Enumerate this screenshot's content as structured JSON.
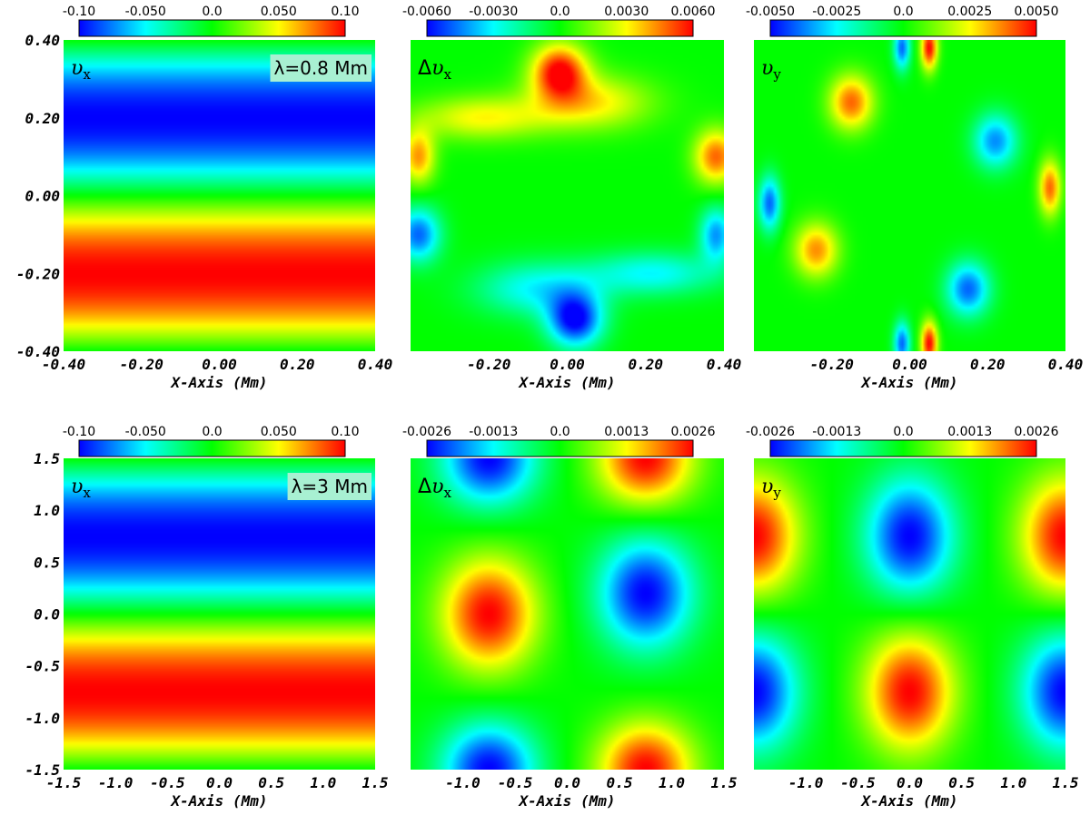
{
  "colors": {
    "colormap": [
      "#0000ff",
      "#00ffff",
      "#00ff00",
      "#ffff00",
      "#ff0000"
    ],
    "label_bg": "#a8f0d2"
  },
  "chart_data": [
    {
      "type": "heatmap",
      "panel": "top-left",
      "var_label": "υ",
      "var_sub": "x",
      "prefix": "",
      "annotation": "λ=0.8 Mm",
      "xlabel": "X-Axis (Mm)",
      "x_ticks": [
        "-0.40",
        "-0.20",
        "0.00",
        "0.20",
        "0.40"
      ],
      "y_ticks": [
        "0.40",
        "0.20",
        "0.00",
        "-0.20",
        "-0.40"
      ],
      "colorbar_ticks": [
        "-0.10",
        "-0.050",
        "0.0",
        "0.050",
        "0.10"
      ],
      "vmin": -0.1,
      "vmax": 0.1,
      "xlim": [
        -0.4,
        0.4
      ],
      "ylim": [
        -0.4,
        0.4
      ],
      "field": {
        "kind": "band",
        "A": 0.1,
        "period": 0.8,
        "center": -0.2
      }
    },
    {
      "type": "heatmap",
      "panel": "top-middle",
      "var_label": "υ",
      "var_sub": "x",
      "prefix": "Δ",
      "annotation": "",
      "xlabel": "X-Axis (Mm)",
      "x_ticks": [
        "-0.20",
        "0.00",
        "0.20",
        "0.40"
      ],
      "y_ticks": [],
      "colorbar_ticks": [
        "-0.0060",
        "-0.0030",
        "0.0",
        "0.0030",
        "0.0060"
      ],
      "vmin": -0.006,
      "vmax": 0.006,
      "xlim": [
        -0.4,
        0.4
      ],
      "ylim": [
        -0.4,
        0.4
      ],
      "field": {
        "kind": "blobs",
        "blobs": [
          {
            "x": -0.02,
            "y": 0.32,
            "a": 0.006,
            "sx": 0.05,
            "sy": 0.05
          },
          {
            "x": 0.06,
            "y": 0.24,
            "a": 0.0032,
            "sx": 0.11,
            "sy": 0.05
          },
          {
            "x": -0.22,
            "y": 0.2,
            "a": 0.003,
            "sx": 0.12,
            "sy": 0.04
          },
          {
            "x": -0.38,
            "y": 0.1,
            "a": 0.0042,
            "sx": 0.03,
            "sy": 0.05
          },
          {
            "x": 0.38,
            "y": 0.1,
            "a": 0.0048,
            "sx": 0.04,
            "sy": 0.05
          },
          {
            "x": 0.02,
            "y": -0.32,
            "a": -0.006,
            "sx": 0.05,
            "sy": 0.05
          },
          {
            "x": -0.08,
            "y": -0.24,
            "a": -0.003,
            "sx": 0.11,
            "sy": 0.05
          },
          {
            "x": 0.22,
            "y": -0.2,
            "a": -0.003,
            "sx": 0.12,
            "sy": 0.04
          },
          {
            "x": -0.38,
            "y": -0.1,
            "a": -0.0048,
            "sx": 0.04,
            "sy": 0.05
          },
          {
            "x": 0.38,
            "y": -0.1,
            "a": -0.0042,
            "sx": 0.03,
            "sy": 0.05
          }
        ]
      }
    },
    {
      "type": "heatmap",
      "panel": "top-right",
      "var_label": "υ",
      "var_sub": "y",
      "prefix": "",
      "annotation": "",
      "xlabel": "X-Axis (Mm)",
      "x_ticks": [
        "-0.20",
        "0.00",
        "0.20",
        "0.40"
      ],
      "y_ticks": [],
      "colorbar_ticks": [
        "-0.0050",
        "-0.0025",
        "0.0",
        "0.0025",
        "0.0050"
      ],
      "vmin": -0.005,
      "vmax": 0.005,
      "xlim": [
        -0.4,
        0.4
      ],
      "ylim": [
        -0.4,
        0.4
      ],
      "field": {
        "kind": "blobs",
        "blobs": [
          {
            "x": -0.15,
            "y": 0.24,
            "a": 0.004,
            "sx": 0.04,
            "sy": 0.05
          },
          {
            "x": 0.22,
            "y": 0.14,
            "a": -0.0036,
            "sx": 0.04,
            "sy": 0.05
          },
          {
            "x": 0.36,
            "y": 0.02,
            "a": 0.004,
            "sx": 0.02,
            "sy": 0.05
          },
          {
            "x": -0.36,
            "y": -0.02,
            "a": -0.004,
            "sx": 0.02,
            "sy": 0.05
          },
          {
            "x": -0.24,
            "y": -0.14,
            "a": 0.0036,
            "sx": 0.04,
            "sy": 0.05
          },
          {
            "x": 0.15,
            "y": -0.24,
            "a": -0.004,
            "sx": 0.04,
            "sy": 0.05
          },
          {
            "x": 0.05,
            "y": 0.38,
            "a": 0.005,
            "sx": 0.015,
            "sy": 0.04
          },
          {
            "x": -0.02,
            "y": 0.38,
            "a": -0.004,
            "sx": 0.015,
            "sy": 0.04
          },
          {
            "x": 0.05,
            "y": -0.38,
            "a": 0.005,
            "sx": 0.015,
            "sy": 0.04
          },
          {
            "x": -0.02,
            "y": -0.38,
            "a": -0.004,
            "sx": 0.015,
            "sy": 0.04
          }
        ]
      }
    },
    {
      "type": "heatmap",
      "panel": "bottom-left",
      "var_label": "υ",
      "var_sub": "x",
      "prefix": "",
      "annotation": "λ=3 Mm",
      "xlabel": "X-Axis (Mm)",
      "x_ticks": [
        "-1.5",
        "-1.0",
        "-0.5",
        "0.0",
        "0.5",
        "1.0",
        "1.5"
      ],
      "y_ticks": [
        "1.5",
        "1.0",
        "0.5",
        "0.0",
        "-0.5",
        "-1.0",
        "-1.5"
      ],
      "colorbar_ticks": [
        "-0.10",
        "-0.050",
        "0.0",
        "0.050",
        "0.10"
      ],
      "vmin": -0.1,
      "vmax": 0.1,
      "xlim": [
        -1.5,
        1.5
      ],
      "ylim": [
        -1.5,
        1.5
      ],
      "field": {
        "kind": "band",
        "A": 0.1,
        "period": 3.0,
        "center": -0.75
      }
    },
    {
      "type": "heatmap",
      "panel": "bottom-middle",
      "var_label": "υ",
      "var_sub": "x",
      "prefix": "Δ",
      "annotation": "",
      "xlabel": "X-Axis (Mm)",
      "x_ticks": [
        "-1.0",
        "-0.5",
        "0.0",
        "0.5",
        "1.0",
        "1.5"
      ],
      "y_ticks": [],
      "colorbar_ticks": [
        "-0.0026",
        "-0.0013",
        "0.0",
        "0.0013",
        "0.0026"
      ],
      "vmin": -0.0026,
      "vmax": 0.0026,
      "xlim": [
        -1.5,
        1.5
      ],
      "ylim": [
        -1.5,
        1.5
      ],
      "field": {
        "kind": "blobs",
        "blobs": [
          {
            "x": -0.75,
            "y": 1.5,
            "a": -0.0026,
            "sx": 0.32,
            "sy": 0.32
          },
          {
            "x": 0.75,
            "y": 1.5,
            "a": 0.0026,
            "sx": 0.32,
            "sy": 0.32
          },
          {
            "x": -0.75,
            "y": 0.0,
            "a": 0.0026,
            "sx": 0.32,
            "sy": 0.38
          },
          {
            "x": 0.75,
            "y": 0.2,
            "a": -0.0026,
            "sx": 0.32,
            "sy": 0.38
          },
          {
            "x": -0.75,
            "y": -1.5,
            "a": -0.0026,
            "sx": 0.32,
            "sy": 0.32
          },
          {
            "x": 0.75,
            "y": -1.5,
            "a": 0.0026,
            "sx": 0.32,
            "sy": 0.32
          }
        ]
      }
    },
    {
      "type": "heatmap",
      "panel": "bottom-right",
      "var_label": "υ",
      "var_sub": "y",
      "prefix": "",
      "annotation": "",
      "xlabel": "X-Axis (Mm)",
      "x_ticks": [
        "-1.0",
        "-0.5",
        "0.0",
        "0.5",
        "1.0",
        "1.5"
      ],
      "y_ticks": [],
      "colorbar_ticks": [
        "-0.0026",
        "-0.0013",
        "0.0",
        "0.0013",
        "0.0026"
      ],
      "vmin": -0.0026,
      "vmax": 0.0026,
      "xlim": [
        -1.5,
        1.5
      ],
      "ylim": [
        -1.5,
        1.5
      ],
      "field": {
        "kind": "blobs",
        "blobs": [
          {
            "x": -1.5,
            "y": 0.75,
            "a": 0.0026,
            "sx": 0.3,
            "sy": 0.4
          },
          {
            "x": 0.0,
            "y": 0.75,
            "a": -0.0026,
            "sx": 0.3,
            "sy": 0.4
          },
          {
            "x": 1.5,
            "y": 0.75,
            "a": 0.0026,
            "sx": 0.3,
            "sy": 0.4
          },
          {
            "x": -1.5,
            "y": -0.75,
            "a": -0.0026,
            "sx": 0.3,
            "sy": 0.4
          },
          {
            "x": 0.0,
            "y": -0.75,
            "a": 0.0026,
            "sx": 0.3,
            "sy": 0.4
          },
          {
            "x": 1.5,
            "y": -0.75,
            "a": -0.0026,
            "sx": 0.3,
            "sy": 0.4
          }
        ]
      }
    }
  ]
}
